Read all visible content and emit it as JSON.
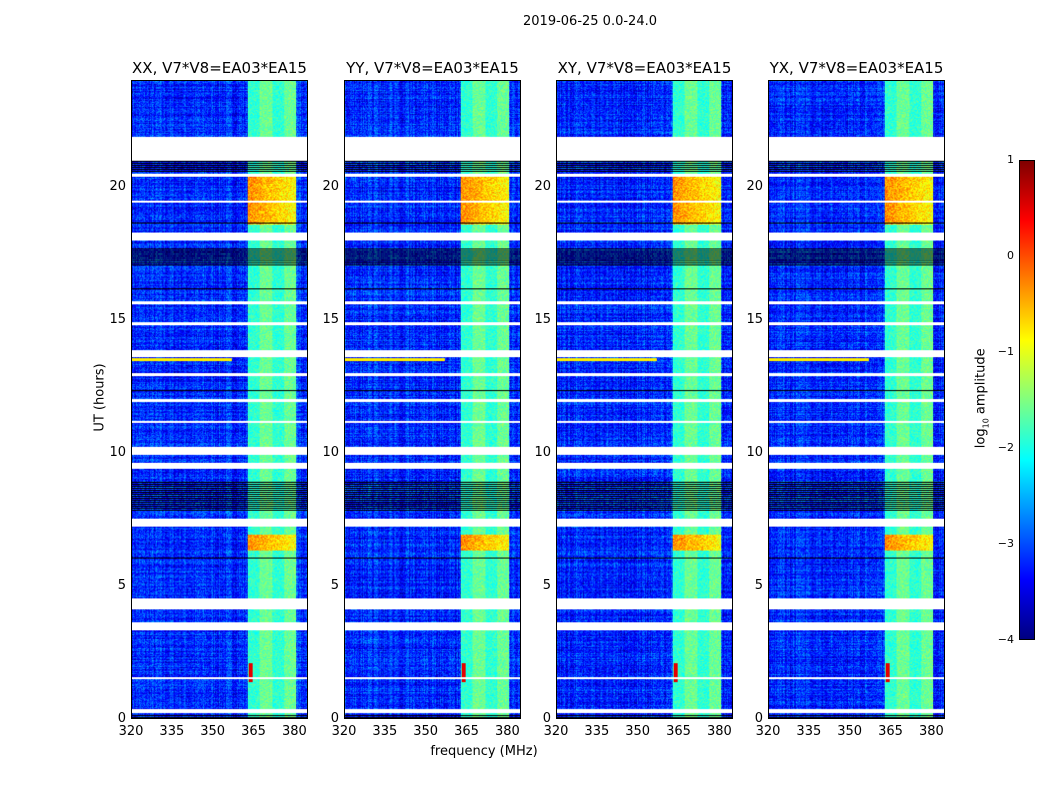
{
  "suptitle": "2019-06-25 0.0-24.0",
  "chart_data": {
    "type": "heatmap",
    "title": "2019-06-25 0.0-24.0",
    "xlabel": "frequency (MHz)",
    "ylabel": "UT (hours)",
    "xlim": [
      320,
      385
    ],
    "ylim": [
      0,
      24
    ],
    "xticks": [
      "320",
      "335",
      "350",
      "365",
      "380"
    ],
    "yticks": [
      "0",
      "5",
      "10",
      "15",
      "20"
    ],
    "panels": [
      {
        "title": "XX, V7*V8=EA03*EA15"
      },
      {
        "title": "YY, V7*V8=EA03*EA15"
      },
      {
        "title": "XY, V7*V8=EA03*EA15"
      },
      {
        "title": "YX, V7*V8=EA03*EA15"
      }
    ],
    "colorbar": {
      "label_main": "log",
      "label_sub": "10",
      "label_rest": " amplitude",
      "range": [
        -4,
        1
      ],
      "ticks": [
        "1",
        "0",
        "−1",
        "−2",
        "−3",
        "−4"
      ],
      "colormap": "jet"
    },
    "background_log_amplitude": -3.2,
    "bright_band_mhz": [
      363,
      381
    ],
    "band_log_amplitude": -1.8,
    "strong_band_hours": [
      [
        6.3,
        6.9
      ],
      [
        18.6,
        20.4
      ]
    ],
    "strong_log_amplitude": -0.3,
    "rfi_spike": {
      "hour": 1.7,
      "mhz": 364,
      "log_amplitude": 0.5
    },
    "rfi_line": {
      "hour": 13.5,
      "mhz": [
        320,
        357
      ],
      "log_amplitude": -0.8
    },
    "flag_white_hours": [
      [
        0.2,
        0.35
      ],
      [
        1.45,
        1.55
      ],
      [
        3.3,
        3.6
      ],
      [
        4.1,
        4.5
      ],
      [
        7.2,
        7.5
      ],
      [
        9.4,
        9.6
      ],
      [
        9.9,
        10.2
      ],
      [
        11.1,
        11.2
      ],
      [
        11.9,
        12.0
      ],
      [
        12.9,
        13.0
      ],
      [
        13.6,
        13.85
      ],
      [
        14.8,
        14.9
      ],
      [
        15.6,
        15.7
      ],
      [
        18.0,
        18.3
      ],
      [
        19.4,
        19.5
      ],
      [
        20.4,
        20.5
      ],
      [
        21.0,
        21.9
      ]
    ],
    "flag_black_hours": [
      [
        0.0,
        0.15
      ],
      [
        1.9,
        1.95
      ],
      [
        6.0,
        6.05
      ],
      [
        7.8,
        8.9
      ],
      [
        16.1,
        16.2
      ],
      [
        17.0,
        17.7
      ],
      [
        18.6,
        18.7
      ],
      [
        20.6,
        21.0
      ],
      [
        12.3,
        12.35
      ]
    ]
  }
}
